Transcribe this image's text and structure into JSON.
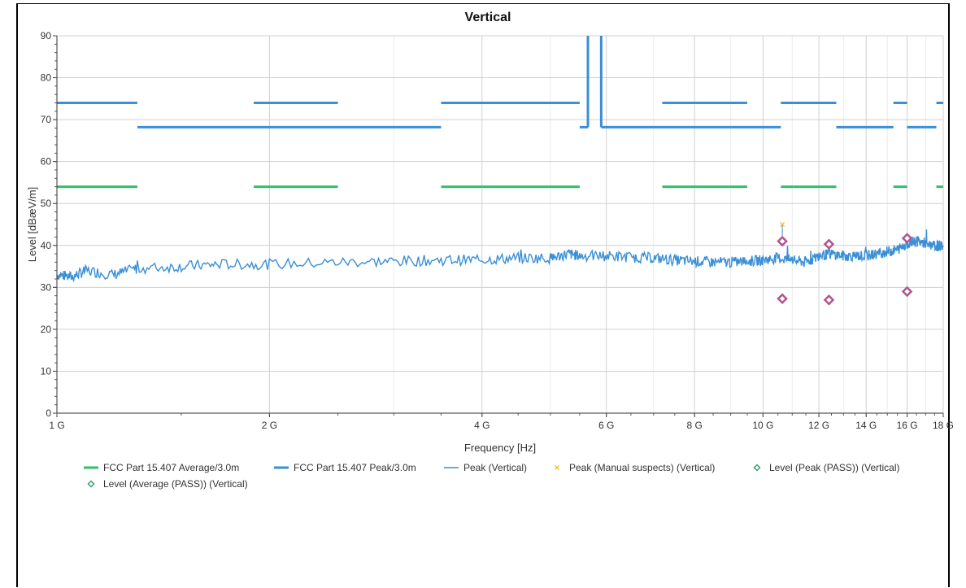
{
  "chart_data": {
    "type": "line",
    "title": "Vertical",
    "xlabel": "Frequency [Hz]",
    "ylabel": "Level [dBæV/m]",
    "xlim": [
      1,
      18
    ],
    "ylim": [
      0,
      90
    ],
    "x_scale": "log",
    "x_ticks": [
      {
        "value": 1,
        "label": "1 G"
      },
      {
        "value": 2,
        "label": "2 G"
      },
      {
        "value": 4,
        "label": "4 G"
      },
      {
        "value": 6,
        "label": "6 G"
      },
      {
        "value": 8,
        "label": "8 G"
      },
      {
        "value": 10,
        "label": "10 G"
      },
      {
        "value": 12,
        "label": "12 G"
      },
      {
        "value": 14,
        "label": "14 G"
      },
      {
        "value": 16,
        "label": "16 G"
      },
      {
        "value": 18,
        "label": "18 G"
      }
    ],
    "y_ticks": [
      0,
      10,
      20,
      30,
      40,
      50,
      60,
      70,
      80,
      90
    ],
    "grid": true,
    "legend_position": "bottom",
    "colors": {
      "avg_limit": "#2ec06a",
      "peak_limit": "#3a8fd6",
      "peak_trace": "#3a8fd6",
      "manual_suspect": "#f2c12e",
      "marker": "#b0558f"
    },
    "series": [
      {
        "name": "FCC Part 15.407 Average/3.0m",
        "kind": "limit",
        "segments": [
          {
            "x": [
              1.0,
              1.3
            ],
            "y": 54
          },
          {
            "x": [
              1.9,
              2.5
            ],
            "y": 54
          },
          {
            "x": [
              3.5,
              5.5
            ],
            "y": 54
          },
          {
            "x": [
              7.2,
              9.5
            ],
            "y": 54
          },
          {
            "x": [
              10.6,
              12.7
            ],
            "y": 54
          },
          {
            "x": [
              15.3,
              16.0
            ],
            "y": 54
          },
          {
            "x": [
              17.6,
              18.0
            ],
            "y": 54
          }
        ]
      },
      {
        "name": "FCC Part 15.407 Peak/3.0m",
        "kind": "limit",
        "segments": [
          {
            "x": [
              1.0,
              1.3
            ],
            "y": 74
          },
          {
            "x": [
              1.9,
              2.5
            ],
            "y": 74
          },
          {
            "x": [
              3.5,
              5.5
            ],
            "y": 74
          },
          {
            "x": [
              7.2,
              9.5
            ],
            "y": 74
          },
          {
            "x": [
              10.6,
              12.7
            ],
            "y": 74
          },
          {
            "x": [
              15.3,
              16.0
            ],
            "y": 74
          },
          {
            "x": [
              17.6,
              18.0
            ],
            "y": 74
          },
          {
            "x": [
              1.3,
              3.5
            ],
            "y": 68.2
          },
          {
            "x": [
              5.5,
              5.65
            ],
            "y": 68.2
          },
          {
            "x": [
              5.9,
              10.6
            ],
            "y": 68.2
          },
          {
            "x": [
              12.7,
              15.3
            ],
            "y": 68.2
          },
          {
            "x": [
              16.0,
              17.6
            ],
            "y": 68.2
          },
          {
            "x": [
              5.65,
              5.65
            ],
            "y": [
              68.2,
              90
            ]
          },
          {
            "x": [
              5.9,
              5.9
            ],
            "y": [
              68.2,
              90
            ]
          }
        ]
      },
      {
        "name": "Peak (Vertical)",
        "kind": "trace",
        "x": [
          1.0,
          1.05,
          1.1,
          1.2,
          1.3,
          1.5,
          1.7,
          2.0,
          2.5,
          3.0,
          3.5,
          4.0,
          4.5,
          5.0,
          5.3,
          5.5,
          6.0,
          6.5,
          7.0,
          7.5,
          8.0,
          8.5,
          9.0,
          9.5,
          10.0,
          10.5,
          11.0,
          11.5,
          12.0,
          12.5,
          13.0,
          13.5,
          14.0,
          14.5,
          15.0,
          15.5,
          16.0,
          16.5,
          17.0,
          17.5,
          18.0
        ],
        "y": [
          33,
          32.5,
          34,
          33,
          34.5,
          35,
          35.5,
          35.5,
          36,
          36.2,
          36.5,
          36.6,
          37,
          37,
          38,
          37.5,
          37.5,
          37.2,
          37,
          36.5,
          36.2,
          36,
          36,
          36.2,
          36.5,
          37,
          36.5,
          36,
          37.5,
          38,
          37.5,
          37.5,
          37.5,
          38,
          38.5,
          39,
          40.5,
          41,
          40.5,
          39.8,
          40
        ]
      },
      {
        "name": "Peak (Manual suspects) (Vertical)",
        "kind": "marker-x",
        "x": [
          10.65
        ],
        "y": [
          45
        ]
      },
      {
        "name": "Level (Peak (PASS)) (Vertical)",
        "kind": "marker-diamond",
        "x": [
          10.65,
          12.4,
          16.0
        ],
        "y": [
          41,
          40.3,
          41.7
        ]
      },
      {
        "name": "Level (Average (PASS)) (Vertical)",
        "kind": "marker-diamond",
        "x": [
          10.65,
          12.4,
          16.0
        ],
        "y": [
          27.3,
          27,
          29
        ]
      }
    ]
  }
}
